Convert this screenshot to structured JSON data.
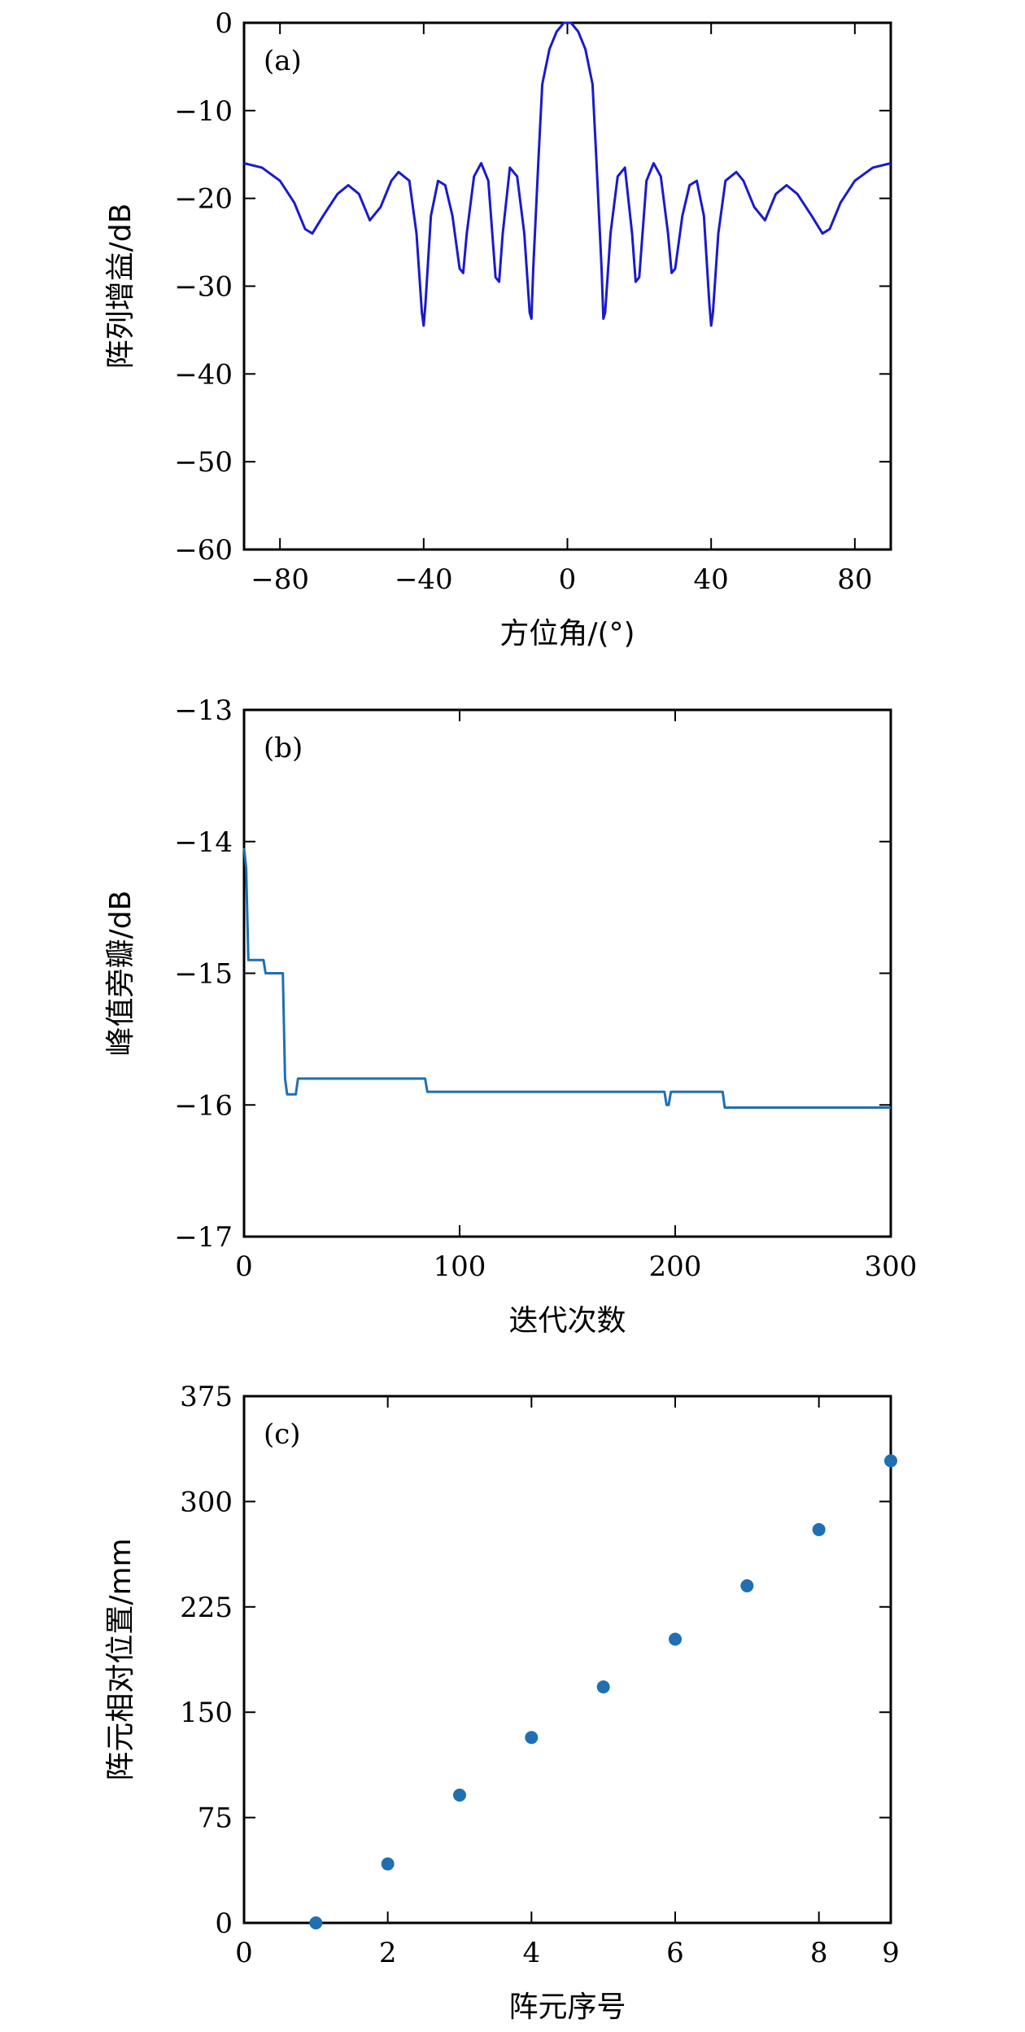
{
  "chart_data": [
    {
      "type": "line",
      "panel_label": "(a)",
      "xlabel": "方位角/(°)",
      "ylabel": "阵列增益/dB",
      "xlim": [
        -90,
        90
      ],
      "ylim": [
        -60,
        0
      ],
      "xticks": [
        -80,
        -40,
        0,
        40,
        80
      ],
      "xtick_labels": [
        "−80",
        "−40",
        "0",
        "40",
        "80"
      ],
      "yticks": [
        0,
        -10,
        -20,
        -30,
        -40,
        -50,
        -60
      ],
      "ytick_labels": [
        "0",
        "−10",
        "−20",
        "−30",
        "−40",
        "−50",
        "−60"
      ],
      "color": "#1a1acc",
      "series": [
        {
          "x": [
            -90,
            -85,
            -80,
            -76,
            -73,
            -71,
            -68,
            -64,
            -61,
            -58,
            -55,
            -52,
            -49,
            -47,
            -44,
            -42,
            -40.5,
            -40,
            -39.5,
            -38,
            -36,
            -34,
            -32,
            -30,
            -29,
            -28,
            -26,
            -24,
            -22,
            -20,
            -19,
            -18,
            -16,
            -14,
            -12,
            -10.5,
            -10,
            -9.5,
            -8,
            -7,
            -5,
            -3,
            -1,
            0,
            1,
            3,
            5,
            7,
            8,
            9.5,
            10,
            10.5,
            12,
            14,
            16,
            18,
            19,
            20,
            22,
            24,
            26,
            28,
            29,
            30,
            32,
            34,
            36,
            38,
            39.5,
            40,
            40.5,
            42,
            44,
            47,
            49,
            52,
            55,
            58,
            61,
            64,
            68,
            71,
            73,
            76,
            80,
            85,
            90
          ],
          "y": [
            -16,
            -16.5,
            -18,
            -20.5,
            -23.5,
            -24,
            -22,
            -19.5,
            -18.5,
            -19.5,
            -22.5,
            -21,
            -18,
            -17,
            -18,
            -24,
            -33,
            -34.5,
            -32,
            -22,
            -18,
            -18.5,
            -22,
            -28,
            -28.5,
            -24,
            -17.5,
            -16,
            -18,
            -29,
            -29.5,
            -24,
            -16.5,
            -17.5,
            -24,
            -33,
            -33.7,
            -28,
            -15,
            -7,
            -3,
            -1,
            0,
            0,
            0,
            -1,
            -3,
            -7,
            -15,
            -28,
            -33.7,
            -33,
            -24,
            -17.5,
            -16.5,
            -24,
            -29.5,
            -29,
            -18,
            -16,
            -17.5,
            -24,
            -28.5,
            -28,
            -22,
            -18.5,
            -18,
            -22,
            -32,
            -34.5,
            -33,
            -24,
            -18,
            -17,
            -18,
            -21,
            -22.5,
            -19.5,
            -18.5,
            -19.5,
            -22,
            -24,
            -23.5,
            -20.5,
            -18,
            -16.5,
            -16
          ]
        }
      ]
    },
    {
      "type": "line",
      "panel_label": "(b)",
      "xlabel": "迭代次数",
      "ylabel": "峰值旁瓣/dB",
      "xlim": [
        0,
        300
      ],
      "ylim": [
        -17,
        -13
      ],
      "xticks": [
        0,
        100,
        200,
        300
      ],
      "xtick_labels": [
        "0",
        "100",
        "200",
        "300"
      ],
      "yticks": [
        -13,
        -14,
        -15,
        -16,
        -17
      ],
      "ytick_labels": [
        "−13",
        "−14",
        "−15",
        "−16",
        "−17"
      ],
      "color": "#1f6fb2",
      "series": [
        {
          "x": [
            0,
            1,
            2,
            9,
            10,
            18,
            19,
            20,
            24,
            25,
            84,
            85,
            195,
            196,
            197,
            198,
            199,
            222,
            223,
            300
          ],
          "y": [
            -14.05,
            -14.2,
            -14.9,
            -14.9,
            -15.0,
            -15.0,
            -15.8,
            -15.92,
            -15.92,
            -15.8,
            -15.8,
            -15.9,
            -15.9,
            -16.0,
            -16.0,
            -15.9,
            -15.9,
            -15.9,
            -16.02,
            -16.02
          ]
        }
      ]
    },
    {
      "type": "scatter",
      "panel_label": "(c)",
      "xlabel": "阵元序号",
      "ylabel": "阵元相对位置/mm",
      "xlim": [
        0,
        9
      ],
      "ylim": [
        0,
        375
      ],
      "xticks": [
        0,
        2,
        4,
        6,
        8,
        9
      ],
      "xtick_labels": [
        "0",
        "2",
        "4",
        "6",
        "8",
        "9"
      ],
      "yticks": [
        0,
        75,
        150,
        225,
        300,
        375
      ],
      "ytick_labels": [
        "0",
        "75",
        "150",
        "225",
        "300",
        "375"
      ],
      "color": "#1f6fb2",
      "series": [
        {
          "x": [
            1,
            2,
            3,
            4,
            5,
            6,
            7,
            8,
            9
          ],
          "y": [
            0,
            42,
            91,
            132,
            168,
            202,
            240,
            280,
            329
          ]
        }
      ]
    }
  ]
}
